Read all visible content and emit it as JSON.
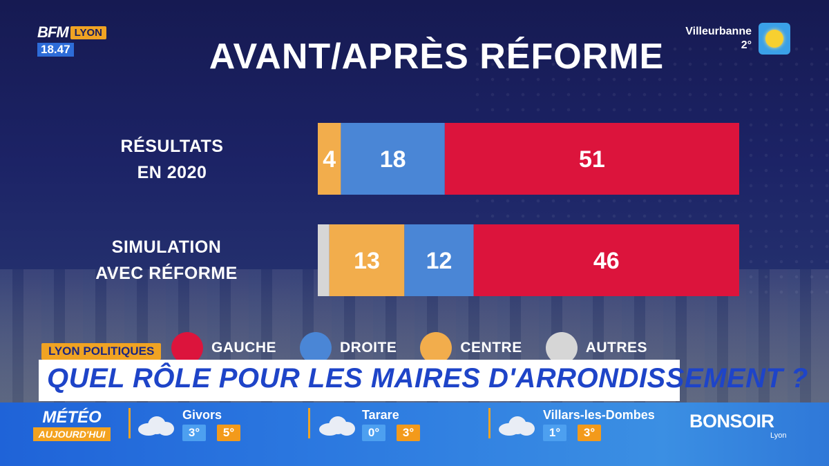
{
  "channel": {
    "brand": "BFM",
    "city": "LYON",
    "time": "18.47"
  },
  "weather_top": {
    "city": "Villeurbanne",
    "temp": "2°",
    "icon": "sun-icon"
  },
  "colors": {
    "gauche": "#dc143c",
    "droite": "#4a86d6",
    "centre": "#f2ad4c",
    "autres": "#d6d6d6"
  },
  "chart_data": {
    "type": "bar",
    "orientation": "horizontal-stacked",
    "title": "AVANT/APRÈS RÉFORME",
    "categories": [
      {
        "line1": "RÉSULTATS",
        "line2": "EN 2020"
      },
      {
        "line1": "SIMULATION",
        "line2": "AVEC RÉFORME"
      }
    ],
    "series": [
      {
        "name": "AUTRES",
        "color": "#d6d6d6",
        "values": [
          0,
          2
        ]
      },
      {
        "name": "CENTRE",
        "color": "#f2ad4c",
        "values": [
          4,
          13
        ]
      },
      {
        "name": "DROITE",
        "color": "#4a86d6",
        "values": [
          18,
          12
        ]
      },
      {
        "name": "GAUCHE",
        "color": "#dc143c",
        "values": [
          51,
          46
        ]
      }
    ],
    "legend": [
      {
        "name": "GAUCHE",
        "color": "#dc143c"
      },
      {
        "name": "DROITE",
        "color": "#4a86d6"
      },
      {
        "name": "CENTRE",
        "color": "#f2ad4c"
      },
      {
        "name": "AUTRES",
        "color": "#d6d6d6"
      }
    ],
    "legend_position": "bottom"
  },
  "banner": {
    "tag": "LYON POLITIQUES",
    "headline": "QUEL RÔLE POUR LES MAIRES D'ARRONDISSEMENT ?"
  },
  "meteo": {
    "title": "MÉTÉO",
    "subtitle": "AUJOURD'HUI",
    "cities": [
      {
        "name": "Givors",
        "min": "3°",
        "max": "5°",
        "icon": "cloud-icon"
      },
      {
        "name": "Tarare",
        "min": "0°",
        "max": "3°",
        "icon": "cloud-icon"
      },
      {
        "name": "Villars-les-Dombes",
        "min": "1°",
        "max": "3°",
        "icon": "cloud-icon"
      }
    ]
  },
  "program": {
    "name": "BONSOIR",
    "sub": "Lyon"
  }
}
